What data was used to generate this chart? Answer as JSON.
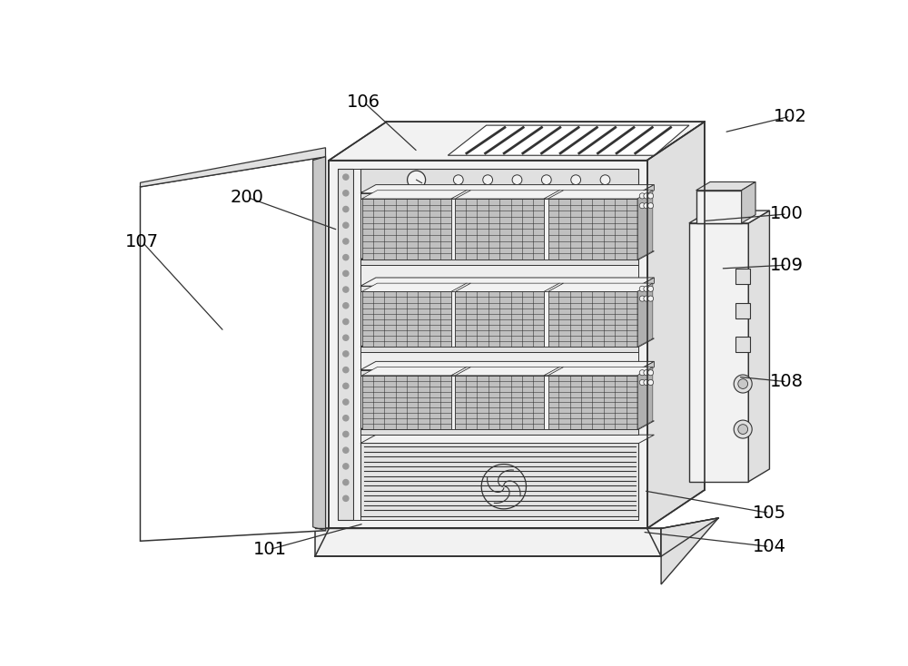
{
  "bg_color": "#ffffff",
  "line_color": "#333333",
  "line_width": 1.0,
  "fill_white": "#ffffff",
  "fill_light": "#f2f2f2",
  "fill_mid": "#e0e0e0",
  "fill_dark": "#c8c8c8",
  "fill_mesh": "#b0b0b0",
  "annotations": [
    [
      "106",
      355,
      32,
      432,
      103
    ],
    [
      "102",
      965,
      52,
      870,
      75
    ],
    [
      "100",
      960,
      192,
      840,
      202
    ],
    [
      "200",
      188,
      168,
      318,
      215
    ],
    [
      "107",
      38,
      232,
      155,
      360
    ],
    [
      "109",
      960,
      265,
      865,
      270
    ],
    [
      "108",
      960,
      432,
      890,
      425
    ],
    [
      "105",
      935,
      620,
      755,
      588
    ],
    [
      "104",
      935,
      668,
      753,
      647
    ],
    [
      "101",
      220,
      672,
      355,
      635
    ]
  ]
}
